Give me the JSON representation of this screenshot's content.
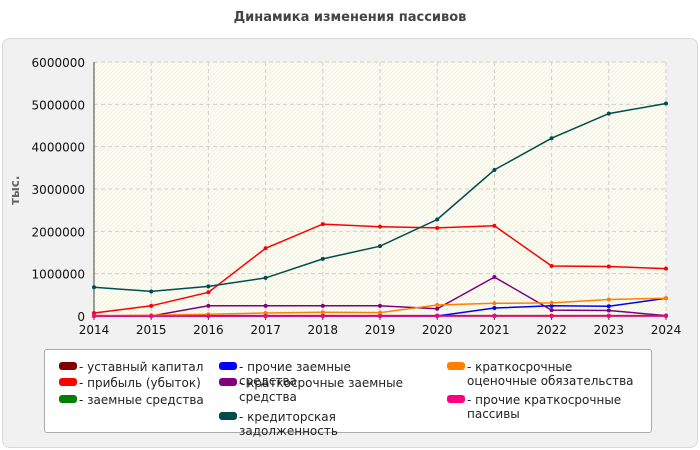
{
  "chart_data": {
    "type": "line",
    "title": "Динамика изменения пассивов",
    "ylabel": "тыс.",
    "xlabel": "",
    "ylim": [
      0,
      6000000
    ],
    "y_ticks": [
      "0",
      "1000000",
      "2000000",
      "3000000",
      "4000000",
      "5000000",
      "6000000"
    ],
    "categories": [
      "2014",
      "2015",
      "2016",
      "2017",
      "2018",
      "2019",
      "2020",
      "2021",
      "2022",
      "2023",
      "2024"
    ],
    "series": [
      {
        "name": "- уставный капитал",
        "color": "#800000",
        "values": [
          10000,
          10000,
          10000,
          10000,
          10000,
          10000,
          10000,
          10000,
          10000,
          10000,
          10000
        ]
      },
      {
        "name": "- прибыль (убыток)",
        "color": "#ff0000",
        "values": [
          70000,
          240000,
          560000,
          1600000,
          2170000,
          2110000,
          2080000,
          2130000,
          1180000,
          1170000,
          1120000
        ]
      },
      {
        "name": "- заемные средства",
        "color": "#008000",
        "values": [
          0,
          0,
          0,
          0,
          0,
          0,
          0,
          0,
          0,
          0,
          0
        ]
      },
      {
        "name": "- прочие заемные средства",
        "color": "#0000ff",
        "values": [
          0,
          0,
          0,
          0,
          0,
          0,
          0,
          190000,
          240000,
          230000,
          420000
        ]
      },
      {
        "name": "- краткосрочные заемные средства",
        "color": "#800080",
        "values": [
          0,
          0,
          240000,
          240000,
          240000,
          240000,
          170000,
          920000,
          140000,
          130000,
          10000
        ]
      },
      {
        "name": "- кредиторская задолженность",
        "color": "#004d4d",
        "values": [
          680000,
          580000,
          700000,
          900000,
          1350000,
          1650000,
          2280000,
          3450000,
          4200000,
          4780000,
          5020000
        ]
      },
      {
        "name": "- краткосрочные оценочные обязательства",
        "color": "#ff8000",
        "values": [
          0,
          20000,
          40000,
          70000,
          90000,
          80000,
          260000,
          300000,
          310000,
          390000,
          420000
        ]
      },
      {
        "name": "- прочие краткосрочные пассивы",
        "color": "#ff0080",
        "values": [
          0,
          0,
          0,
          0,
          0,
          0,
          0,
          0,
          0,
          0,
          0
        ]
      }
    ]
  }
}
